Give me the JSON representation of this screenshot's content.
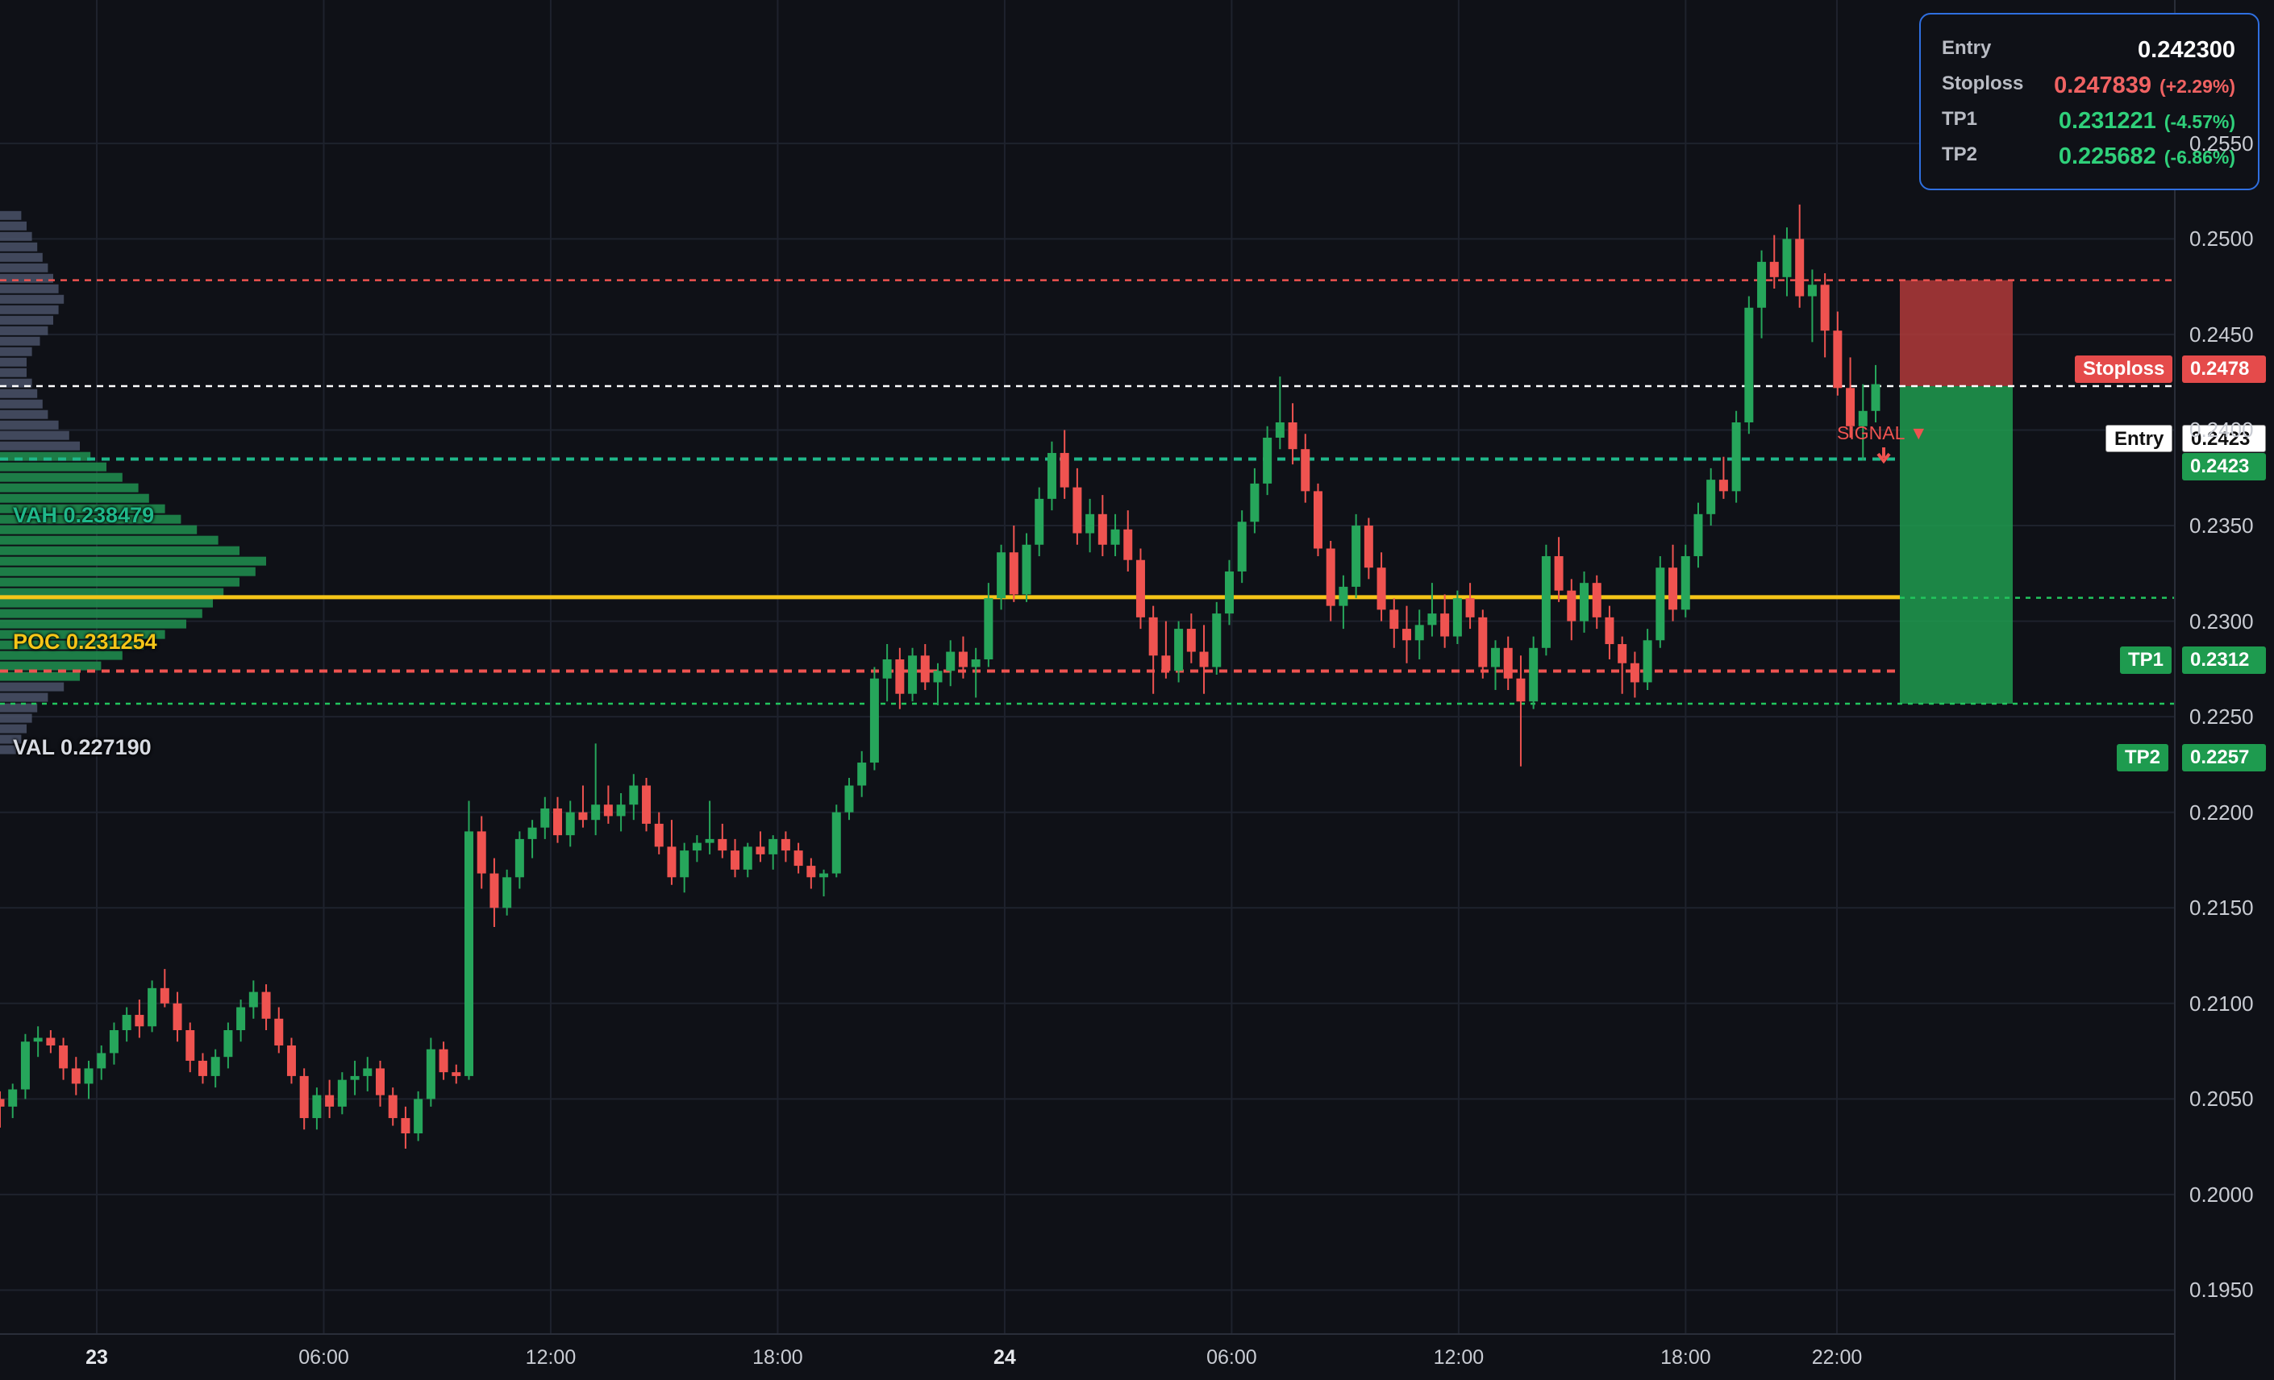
{
  "info_panel": {
    "entry": {
      "label": "Entry",
      "value": "0.242300"
    },
    "stoploss": {
      "label": "Stoploss",
      "value": "0.247839",
      "pct": "(+2.29%)"
    },
    "tp1": {
      "label": "TP1",
      "value": "0.231221",
      "pct": "(-4.57%)"
    },
    "tp2": {
      "label": "TP2",
      "value": "0.225682",
      "pct": "(-6.86%)"
    }
  },
  "price_tags": {
    "stoploss": {
      "label": "Stoploss",
      "value": "0.2478"
    },
    "entry": {
      "label": "Entry",
      "value": "0.2423",
      "value2": "0.2423"
    },
    "tp1": {
      "label": "TP1",
      "value": "0.2312"
    },
    "tp2": {
      "label": "TP2",
      "value": "0.2257"
    }
  },
  "profile_labels": {
    "vah": "VAH  0.238479",
    "poc": "POC  0.231254",
    "val": "VAL  0.227190"
  },
  "signal_label": "SIGNAL ▼",
  "colors": {
    "up": "#26a65b",
    "down": "#ef5350",
    "poc": "#f5c518",
    "vah": "#1fb88a",
    "entry": "#ffffff",
    "stoploss": "#ef5350",
    "tp": "#22c55e",
    "panel_border": "#2f6fe0"
  },
  "chart_data": {
    "type": "candlestick",
    "y_ticks": [
      "0.2550",
      "0.2500",
      "0.2450",
      "0.2400",
      "0.2350",
      "0.2300",
      "0.2250",
      "0.2200",
      "0.2150",
      "0.2100",
      "0.2050",
      "0.2000",
      "0.1950"
    ],
    "x_ticks": [
      {
        "label": "23",
        "bold": true,
        "hour": 0
      },
      {
        "label": "06:00",
        "bold": false,
        "hour": 6
      },
      {
        "label": "12:00",
        "bold": false,
        "hour": 12
      },
      {
        "label": "18:00",
        "bold": false,
        "hour": 18
      },
      {
        "label": "24",
        "bold": true,
        "hour": 24
      },
      {
        "label": "06:00",
        "bold": false,
        "hour": 30
      },
      {
        "label": "12:00",
        "bold": false,
        "hour": 36
      },
      {
        "label": "18:00",
        "bold": false,
        "hour": 42
      },
      {
        "label": "22:00",
        "bold": false,
        "hour": 46
      }
    ],
    "ylim": [
      0.1927,
      0.2625
    ],
    "levels": {
      "stoploss": 0.247839,
      "entry": 0.2423,
      "vah": 0.238479,
      "poc": 0.231254,
      "tp1": 0.231221,
      "val": 0.22719,
      "tp2": 0.225682
    },
    "volume_profile_relative_widths": [
      0.08,
      0.1,
      0.12,
      0.14,
      0.16,
      0.18,
      0.2,
      0.22,
      0.24,
      0.22,
      0.2,
      0.18,
      0.15,
      0.12,
      0.1,
      0.1,
      0.12,
      0.14,
      0.16,
      0.18,
      0.22,
      0.26,
      0.3,
      0.34,
      0.4,
      0.46,
      0.52,
      0.56,
      0.62,
      0.68,
      0.74,
      0.82,
      0.9,
      1.0,
      0.96,
      0.9,
      0.84,
      0.8,
      0.76,
      0.7,
      0.62,
      0.54,
      0.46,
      0.38,
      0.3,
      0.24,
      0.18,
      0.14,
      0.12,
      0.1,
      0.08,
      0.06
    ],
    "candles": [
      [
        0.205,
        0.2054,
        0.2035,
        0.2046
      ],
      [
        0.2046,
        0.2058,
        0.204,
        0.2055
      ],
      [
        0.2055,
        0.2084,
        0.205,
        0.208
      ],
      [
        0.208,
        0.2088,
        0.2072,
        0.2082
      ],
      [
        0.2082,
        0.2086,
        0.2074,
        0.2078
      ],
      [
        0.2078,
        0.2082,
        0.206,
        0.2066
      ],
      [
        0.2066,
        0.2072,
        0.2052,
        0.2058
      ],
      [
        0.2058,
        0.207,
        0.205,
        0.2066
      ],
      [
        0.2066,
        0.2078,
        0.206,
        0.2074
      ],
      [
        0.2074,
        0.209,
        0.2068,
        0.2086
      ],
      [
        0.2086,
        0.2098,
        0.208,
        0.2094
      ],
      [
        0.2094,
        0.2102,
        0.2082,
        0.2088
      ],
      [
        0.2088,
        0.2112,
        0.2085,
        0.2108
      ],
      [
        0.2108,
        0.2118,
        0.2098,
        0.21
      ],
      [
        0.21,
        0.2106,
        0.208,
        0.2086
      ],
      [
        0.2086,
        0.209,
        0.2064,
        0.207
      ],
      [
        0.207,
        0.2074,
        0.2058,
        0.2062
      ],
      [
        0.2062,
        0.2076,
        0.2056,
        0.2072
      ],
      [
        0.2072,
        0.209,
        0.2066,
        0.2086
      ],
      [
        0.2086,
        0.2102,
        0.208,
        0.2098
      ],
      [
        0.2098,
        0.2112,
        0.2092,
        0.2106
      ],
      [
        0.2106,
        0.211,
        0.2086,
        0.2092
      ],
      [
        0.2092,
        0.2098,
        0.2074,
        0.2078
      ],
      [
        0.2078,
        0.2082,
        0.2058,
        0.2062
      ],
      [
        0.2062,
        0.2066,
        0.2034,
        0.204
      ],
      [
        0.204,
        0.2056,
        0.2034,
        0.2052
      ],
      [
        0.2052,
        0.206,
        0.204,
        0.2046
      ],
      [
        0.2046,
        0.2064,
        0.2042,
        0.206
      ],
      [
        0.206,
        0.207,
        0.2052,
        0.2062
      ],
      [
        0.2062,
        0.2072,
        0.2054,
        0.2066
      ],
      [
        0.2066,
        0.207,
        0.2046,
        0.2052
      ],
      [
        0.2052,
        0.2056,
        0.2036,
        0.204
      ],
      [
        0.204,
        0.2046,
        0.2024,
        0.2032
      ],
      [
        0.2032,
        0.2054,
        0.2028,
        0.205
      ],
      [
        0.205,
        0.2082,
        0.2046,
        0.2076
      ],
      [
        0.2076,
        0.208,
        0.206,
        0.2064
      ],
      [
        0.2064,
        0.2068,
        0.2058,
        0.2062
      ],
      [
        0.2062,
        0.2206,
        0.206,
        0.219
      ],
      [
        0.219,
        0.2198,
        0.216,
        0.2168
      ],
      [
        0.2168,
        0.2176,
        0.214,
        0.215
      ],
      [
        0.215,
        0.217,
        0.2146,
        0.2166
      ],
      [
        0.2166,
        0.219,
        0.216,
        0.2186
      ],
      [
        0.2186,
        0.2196,
        0.2176,
        0.2192
      ],
      [
        0.2192,
        0.2208,
        0.2186,
        0.2202
      ],
      [
        0.2202,
        0.2208,
        0.2184,
        0.2188
      ],
      [
        0.2188,
        0.2206,
        0.2182,
        0.22
      ],
      [
        0.22,
        0.2214,
        0.2192,
        0.2196
      ],
      [
        0.2196,
        0.2236,
        0.2188,
        0.2204
      ],
      [
        0.2204,
        0.2214,
        0.2194,
        0.2198
      ],
      [
        0.2198,
        0.221,
        0.219,
        0.2204
      ],
      [
        0.2204,
        0.222,
        0.2196,
        0.2214
      ],
      [
        0.2214,
        0.2218,
        0.219,
        0.2194
      ],
      [
        0.2194,
        0.22,
        0.2178,
        0.2182
      ],
      [
        0.2182,
        0.2196,
        0.2162,
        0.2166
      ],
      [
        0.2166,
        0.2184,
        0.2158,
        0.218
      ],
      [
        0.218,
        0.2188,
        0.2174,
        0.2184
      ],
      [
        0.2184,
        0.2206,
        0.2178,
        0.2186
      ],
      [
        0.2186,
        0.2194,
        0.2176,
        0.218
      ],
      [
        0.218,
        0.2186,
        0.2166,
        0.217
      ],
      [
        0.217,
        0.2184,
        0.2166,
        0.2182
      ],
      [
        0.2182,
        0.219,
        0.2174,
        0.2178
      ],
      [
        0.2178,
        0.2188,
        0.217,
        0.2186
      ],
      [
        0.2186,
        0.219,
        0.2174,
        0.218
      ],
      [
        0.218,
        0.2184,
        0.2168,
        0.2172
      ],
      [
        0.2172,
        0.2176,
        0.216,
        0.2166
      ],
      [
        0.2166,
        0.217,
        0.2156,
        0.2168
      ],
      [
        0.2168,
        0.2204,
        0.2166,
        0.22
      ],
      [
        0.22,
        0.2218,
        0.2196,
        0.2214
      ],
      [
        0.2214,
        0.2232,
        0.2208,
        0.2226
      ],
      [
        0.2226,
        0.2276,
        0.2222,
        0.227
      ],
      [
        0.227,
        0.2288,
        0.2258,
        0.228
      ],
      [
        0.228,
        0.2286,
        0.2254,
        0.2262
      ],
      [
        0.2262,
        0.2286,
        0.2258,
        0.2282
      ],
      [
        0.2282,
        0.2288,
        0.2264,
        0.2268
      ],
      [
        0.2268,
        0.2278,
        0.2256,
        0.2274
      ],
      [
        0.2274,
        0.229,
        0.2266,
        0.2284
      ],
      [
        0.2284,
        0.2292,
        0.227,
        0.2276
      ],
      [
        0.2276,
        0.2286,
        0.226,
        0.228
      ],
      [
        0.228,
        0.232,
        0.2276,
        0.2312
      ],
      [
        0.2312,
        0.234,
        0.2306,
        0.2336
      ],
      [
        0.2336,
        0.235,
        0.231,
        0.2314
      ],
      [
        0.2314,
        0.2346,
        0.231,
        0.234
      ],
      [
        0.234,
        0.237,
        0.2334,
        0.2364
      ],
      [
        0.2364,
        0.2394,
        0.2358,
        0.2388
      ],
      [
        0.2388,
        0.24,
        0.2364,
        0.237
      ],
      [
        0.237,
        0.238,
        0.234,
        0.2346
      ],
      [
        0.2346,
        0.2364,
        0.2336,
        0.2356
      ],
      [
        0.2356,
        0.2366,
        0.2334,
        0.234
      ],
      [
        0.234,
        0.2356,
        0.2334,
        0.2348
      ],
      [
        0.2348,
        0.2358,
        0.2326,
        0.2332
      ],
      [
        0.2332,
        0.2338,
        0.2296,
        0.2302
      ],
      [
        0.2302,
        0.2308,
        0.2262,
        0.2282
      ],
      [
        0.2282,
        0.23,
        0.227,
        0.2274
      ],
      [
        0.2274,
        0.23,
        0.2268,
        0.2296
      ],
      [
        0.2296,
        0.2304,
        0.2278,
        0.2284
      ],
      [
        0.2284,
        0.2298,
        0.2262,
        0.2276
      ],
      [
        0.2276,
        0.231,
        0.2272,
        0.2304
      ],
      [
        0.2304,
        0.2332,
        0.2298,
        0.2326
      ],
      [
        0.2326,
        0.2358,
        0.232,
        0.2352
      ],
      [
        0.2352,
        0.238,
        0.2346,
        0.2372
      ],
      [
        0.2372,
        0.2402,
        0.2366,
        0.2396
      ],
      [
        0.2396,
        0.2428,
        0.239,
        0.2404
      ],
      [
        0.2404,
        0.2414,
        0.2382,
        0.239
      ],
      [
        0.239,
        0.2398,
        0.2362,
        0.2368
      ],
      [
        0.2368,
        0.2372,
        0.2334,
        0.2338
      ],
      [
        0.2338,
        0.2342,
        0.23,
        0.2308
      ],
      [
        0.2308,
        0.2324,
        0.2296,
        0.2318
      ],
      [
        0.2318,
        0.2356,
        0.2312,
        0.235
      ],
      [
        0.235,
        0.2354,
        0.2322,
        0.2328
      ],
      [
        0.2328,
        0.2336,
        0.23,
        0.2306
      ],
      [
        0.2306,
        0.2312,
        0.2286,
        0.2296
      ],
      [
        0.2296,
        0.2308,
        0.2278,
        0.229
      ],
      [
        0.229,
        0.2306,
        0.228,
        0.2298
      ],
      [
        0.2298,
        0.232,
        0.2292,
        0.2304
      ],
      [
        0.2304,
        0.2314,
        0.2286,
        0.2292
      ],
      [
        0.2292,
        0.2316,
        0.2288,
        0.2312
      ],
      [
        0.2312,
        0.232,
        0.2296,
        0.2302
      ],
      [
        0.2302,
        0.2306,
        0.227,
        0.2276
      ],
      [
        0.2276,
        0.229,
        0.2264,
        0.2286
      ],
      [
        0.2286,
        0.2292,
        0.2264,
        0.227
      ],
      [
        0.227,
        0.2282,
        0.2224,
        0.2258
      ],
      [
        0.2258,
        0.2292,
        0.2254,
        0.2286
      ],
      [
        0.2286,
        0.234,
        0.2282,
        0.2334
      ],
      [
        0.2334,
        0.2344,
        0.231,
        0.2316
      ],
      [
        0.2316,
        0.2322,
        0.229,
        0.23
      ],
      [
        0.23,
        0.2326,
        0.2294,
        0.232
      ],
      [
        0.232,
        0.2324,
        0.2296,
        0.2302
      ],
      [
        0.2302,
        0.2308,
        0.228,
        0.2288
      ],
      [
        0.2288,
        0.2292,
        0.2262,
        0.2278
      ],
      [
        0.2278,
        0.2284,
        0.226,
        0.2268
      ],
      [
        0.2268,
        0.2296,
        0.2264,
        0.229
      ],
      [
        0.229,
        0.2334,
        0.2286,
        0.2328
      ],
      [
        0.2328,
        0.234,
        0.23,
        0.2306
      ],
      [
        0.2306,
        0.234,
        0.2302,
        0.2334
      ],
      [
        0.2334,
        0.2362,
        0.2328,
        0.2356
      ],
      [
        0.2356,
        0.238,
        0.235,
        0.2374
      ],
      [
        0.2374,
        0.2386,
        0.2364,
        0.2368
      ],
      [
        0.2368,
        0.241,
        0.2362,
        0.2404
      ],
      [
        0.2404,
        0.247,
        0.2398,
        0.2464
      ],
      [
        0.2464,
        0.2494,
        0.2448,
        0.2488
      ],
      [
        0.2488,
        0.2502,
        0.2474,
        0.248
      ],
      [
        0.248,
        0.2506,
        0.247,
        0.25
      ],
      [
        0.25,
        0.2518,
        0.2464,
        0.247
      ],
      [
        0.247,
        0.2484,
        0.2446,
        0.2476
      ],
      [
        0.2476,
        0.2482,
        0.2438,
        0.2452
      ],
      [
        0.2452,
        0.2462,
        0.2418,
        0.2422
      ],
      [
        0.2422,
        0.2438,
        0.2396,
        0.2402
      ],
      [
        0.2402,
        0.2424,
        0.2384,
        0.241
      ],
      [
        0.241,
        0.2434,
        0.2404,
        0.2424
      ]
    ]
  }
}
